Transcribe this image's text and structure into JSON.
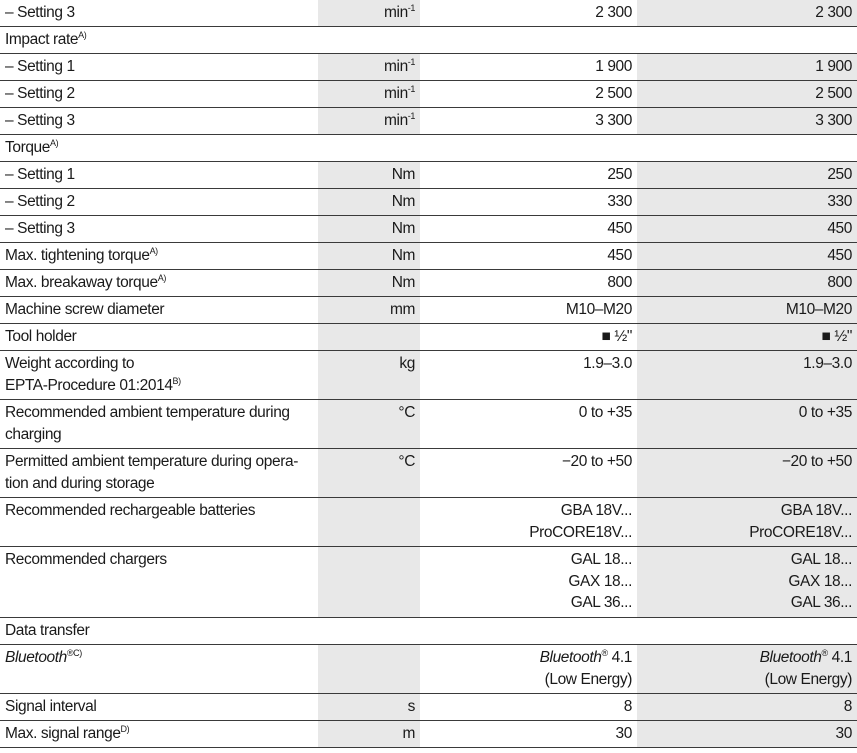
{
  "table": {
    "rows": [
      {
        "label": [
          "– Setting 3"
        ],
        "unit": [
          [
            "min",
            {
              "sup": "-1"
            }
          ]
        ],
        "values": [
          [
            "2 300"
          ],
          [
            "2 300"
          ]
        ]
      },
      {
        "label": [
          [
            "Impact rate",
            {
              "sup": "A)"
            }
          ]
        ]
      },
      {
        "label": [
          "– Setting 1"
        ],
        "unit": [
          [
            "min",
            {
              "sup": "-1"
            }
          ]
        ],
        "values": [
          [
            "1 900"
          ],
          [
            "1 900"
          ]
        ]
      },
      {
        "label": [
          "– Setting 2"
        ],
        "unit": [
          [
            "min",
            {
              "sup": "-1"
            }
          ]
        ],
        "values": [
          [
            "2 500"
          ],
          [
            "2 500"
          ]
        ]
      },
      {
        "label": [
          "– Setting 3"
        ],
        "unit": [
          [
            "min",
            {
              "sup": "-1"
            }
          ]
        ],
        "values": [
          [
            "3 300"
          ],
          [
            "3 300"
          ]
        ]
      },
      {
        "label": [
          [
            "Torque",
            {
              "sup": "A)"
            }
          ]
        ]
      },
      {
        "label": [
          "– Setting 1"
        ],
        "unit": [
          "Nm"
        ],
        "values": [
          [
            "250"
          ],
          [
            "250"
          ]
        ]
      },
      {
        "label": [
          "– Setting 2"
        ],
        "unit": [
          "Nm"
        ],
        "values": [
          [
            "330"
          ],
          [
            "330"
          ]
        ]
      },
      {
        "label": [
          "– Setting 3"
        ],
        "unit": [
          "Nm"
        ],
        "values": [
          [
            "450"
          ],
          [
            "450"
          ]
        ]
      },
      {
        "label": [
          [
            "Max. tightening torque",
            {
              "sup": "A)"
            }
          ]
        ],
        "unit": [
          "Nm"
        ],
        "values": [
          [
            "450"
          ],
          [
            "450"
          ]
        ]
      },
      {
        "label": [
          [
            "Max. breakaway torque",
            {
              "sup": "A)"
            }
          ]
        ],
        "unit": [
          "Nm"
        ],
        "values": [
          [
            "800"
          ],
          [
            "800"
          ]
        ]
      },
      {
        "label": [
          "Machine screw diameter"
        ],
        "unit": [
          "mm"
        ],
        "values": [
          [
            "M10–M20"
          ],
          [
            "M10–M20"
          ]
        ]
      },
      {
        "label": [
          "Tool holder"
        ],
        "values": [
          [
            "■ ½\""
          ],
          [
            "■ ½\""
          ]
        ]
      },
      {
        "label": [
          "Weight according to",
          [
            "EPTA-Procedure 01:2014",
            {
              "sup": "B)"
            }
          ]
        ],
        "unit": [
          "kg"
        ],
        "values": [
          [
            "1.9–3.0"
          ],
          [
            "1.9–3.0"
          ]
        ]
      },
      {
        "label": [
          "Recommended ambient temperature during",
          "charging"
        ],
        "unit": [
          "°C"
        ],
        "values": [
          [
            "0 to +35"
          ],
          [
            "0 to +35"
          ]
        ]
      },
      {
        "label": [
          "Permitted ambient temperature during opera-",
          "tion and during storage"
        ],
        "unit": [
          "°C"
        ],
        "values": [
          [
            "−20 to +50"
          ],
          [
            "−20 to +50"
          ]
        ]
      },
      {
        "label": [
          "Recommended rechargeable batteries"
        ],
        "values": [
          [
            "GBA 18V...",
            "ProCORE18V..."
          ],
          [
            "GBA 18V...",
            "ProCORE18V..."
          ]
        ]
      },
      {
        "label": [
          "Recommended chargers"
        ],
        "values": [
          [
            "GAL 18...",
            "GAX 18...",
            "GAL 36..."
          ],
          [
            "GAL 18...",
            "GAX 18...",
            "GAL 36..."
          ]
        ]
      },
      {
        "label": [
          "Data transfer"
        ]
      },
      {
        "label": [
          [
            {
              "i": "Bluetooth"
            },
            {
              "sup": "®C)"
            }
          ]
        ],
        "values": [
          [
            [
              {
                "i": "Bluetooth"
              },
              {
                "sup": "®"
              },
              " 4.1"
            ],
            "(Low Energy)"
          ],
          [
            [
              {
                "i": "Bluetooth"
              },
              {
                "sup": "®"
              },
              " 4.1"
            ],
            "(Low Energy)"
          ]
        ]
      },
      {
        "label": [
          "Signal interval"
        ],
        "unit": [
          "s"
        ],
        "values": [
          [
            "8"
          ],
          [
            "8"
          ]
        ]
      },
      {
        "label": [
          [
            "Max. signal range",
            {
              "sup": "D)"
            }
          ]
        ],
        "unit": [
          "m"
        ],
        "values": [
          [
            "30"
          ],
          [
            "30"
          ]
        ]
      }
    ]
  }
}
